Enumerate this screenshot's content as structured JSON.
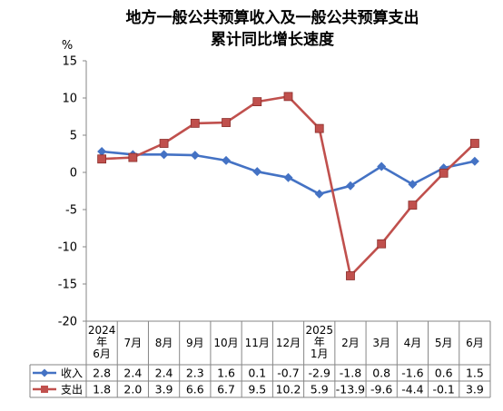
{
  "chart_data": {
    "type": "line",
    "title_line1": "地方一般公共预算收入及一般公共预算支出",
    "title_line2": "累计同比增长速度",
    "ylabel": "%",
    "ylim": [
      -20,
      15
    ],
    "yticks": [
      15,
      10,
      5,
      0,
      -5,
      -10,
      -15,
      -20
    ],
    "grid": false,
    "categories": [
      [
        "2024",
        "年",
        "6月"
      ],
      [
        "7月"
      ],
      [
        "8月"
      ],
      [
        "9月"
      ],
      [
        "10月"
      ],
      [
        "11月"
      ],
      [
        "12月"
      ],
      [
        "2025",
        "年",
        "1月"
      ],
      [
        "2月"
      ],
      [
        "3月"
      ],
      [
        "4月"
      ],
      [
        "5月"
      ],
      [
        "6月"
      ]
    ],
    "series": [
      {
        "name": "收入",
        "color": "#4472C4",
        "marker": "diamond",
        "values": [
          2.8,
          2.4,
          2.4,
          2.3,
          1.6,
          0.1,
          -0.7,
          -2.9,
          -1.8,
          0.8,
          -1.6,
          0.6,
          1.5
        ]
      },
      {
        "name": "支出",
        "color": "#C0504D",
        "marker": "square",
        "values": [
          1.8,
          2.0,
          3.9,
          6.6,
          6.7,
          9.5,
          10.2,
          5.9,
          -13.9,
          -9.6,
          -4.4,
          -0.1,
          3.9
        ]
      }
    ]
  }
}
